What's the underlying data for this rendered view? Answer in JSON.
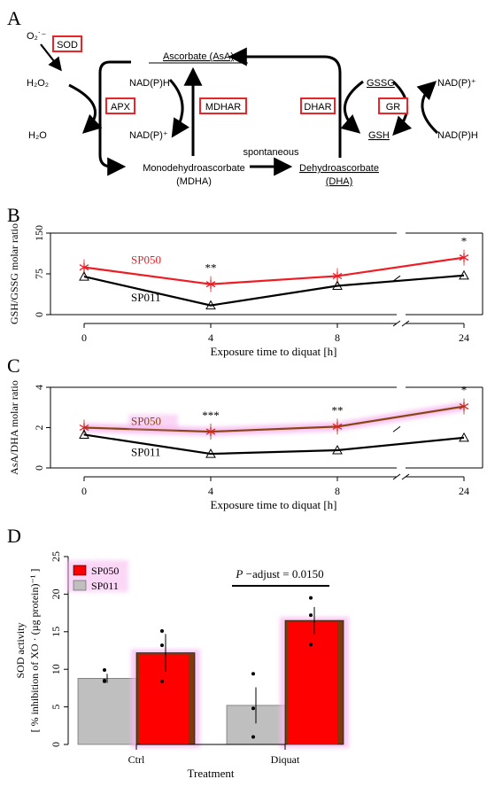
{
  "panelA": {
    "letter": "A",
    "o2_label": "O₂˙⁻",
    "sod_box": "SOD",
    "h2o2": "H₂O₂",
    "h2o": "H₂O",
    "apx_box": "APX",
    "ascorbate": "Ascorbate (AsA)",
    "nadph_mdhar_top": "NAD(P)H",
    "nadp_mdhar_bottom": "NAD(P)⁺",
    "mdhar_box": "MDHAR",
    "mdha_line1": "Monodehydroascorbate",
    "mdha_line2": "(MDHA)",
    "spontaneous": "spontaneous",
    "dha_line1": "Dehydroascorbate",
    "dha_line2": "(DHA)",
    "dhar_box": "DHAR",
    "gssg": "GSSG",
    "gsh": "GSH",
    "gr_box": "GR",
    "nadp_gr_top": "NAD(P)⁺",
    "nadph_gr_bottom": "NAD(P)H",
    "box_color": "#e8262a"
  },
  "panelB": {
    "letter": "B"
  },
  "panelC": {
    "letter": "C"
  },
  "panelD": {
    "letter": "D"
  },
  "colors": {
    "sp050": "#ee1c23",
    "sp050_dark": "#8b4513",
    "sp011": "#000000",
    "bar_grey": "#bfbfbf",
    "bar_red": "#ff0000",
    "glow": "#f7b7ef"
  },
  "chart_data": [
    {
      "type": "line",
      "panel": "B",
      "x": [
        0,
        4,
        8,
        24
      ],
      "xticklabels": [
        "0",
        "4",
        "8",
        "24"
      ],
      "xlabel": "Exposure time to diquat [h]",
      "ylabel": "GSH/GSSG molar ratio",
      "yticks": [
        0,
        75,
        150
      ],
      "ylim": [
        0,
        150
      ],
      "axis_break": "between 8 and 24",
      "series": [
        {
          "name": "SP050",
          "values": [
            87,
            56,
            71,
            105
          ],
          "marker": "asterisk"
        },
        {
          "name": "SP011",
          "values": [
            70,
            17,
            53,
            72
          ],
          "marker": "triangle"
        }
      ],
      "annotations": [
        {
          "x": 4,
          "text": "**"
        },
        {
          "x": 24,
          "text": "*"
        }
      ]
    },
    {
      "type": "line",
      "panel": "C",
      "x": [
        0,
        4,
        8,
        24
      ],
      "xticklabels": [
        "0",
        "4",
        "8",
        "24"
      ],
      "xlabel": "Exposure time to diquat [h]",
      "ylabel": "AsA/DHA molar ratio",
      "yticks": [
        0,
        2,
        4
      ],
      "ylim": [
        0,
        4
      ],
      "axis_break": "between 8 and 24",
      "series": [
        {
          "name": "SP050",
          "values": [
            2.0,
            1.8,
            2.05,
            3.05
          ],
          "marker": "asterisk"
        },
        {
          "name": "SP011",
          "values": [
            1.65,
            0.7,
            0.88,
            1.5
          ],
          "marker": "triangle"
        }
      ],
      "annotations": [
        {
          "x": 4,
          "text": "***"
        },
        {
          "x": 8,
          "text": "**"
        },
        {
          "x": 24,
          "text": "*"
        }
      ]
    },
    {
      "type": "bar",
      "panel": "D",
      "categories": [
        "Ctrl",
        "Diquat"
      ],
      "xlabel": "Treatment",
      "ylabel_line1": "SOD activity",
      "ylabel_line2": "[ % inhibition of XO · (µg protein)⁻¹ ]",
      "yticks": [
        0,
        5,
        10,
        15,
        20,
        25
      ],
      "ylim": [
        0,
        25
      ],
      "series": [
        {
          "name": "SP011",
          "values": [
            8.8,
            5.2
          ],
          "errors": [
            0.6,
            2.4
          ],
          "points": [
            [
              9.9,
              8.5,
              8.4
            ],
            [
              9.4,
              4.8,
              1.0
            ]
          ]
        },
        {
          "name": "SP050",
          "values": [
            12.2,
            16.5
          ],
          "errors": [
            2.5,
            1.8
          ],
          "points": [
            [
              15.1,
              13.2,
              8.4
            ],
            [
              19.5,
              17.2,
              13.3
            ]
          ]
        }
      ],
      "legend": [
        "SP050",
        "SP011"
      ],
      "annotation": {
        "prefix": "P",
        "text": " −adjust = 0.0150"
      }
    }
  ]
}
